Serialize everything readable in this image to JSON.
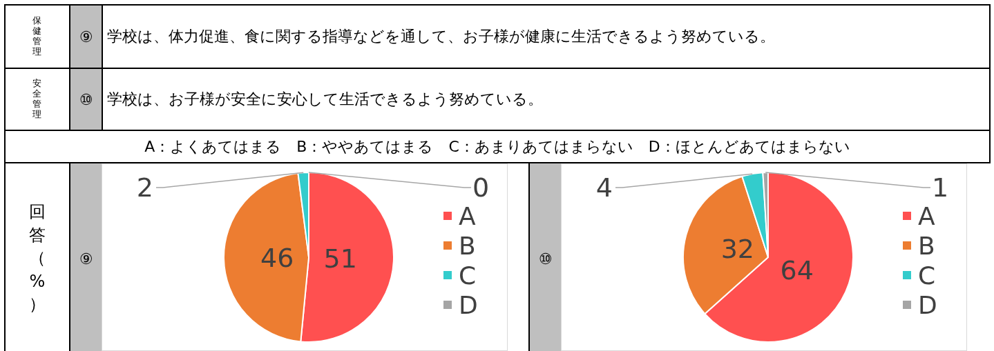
{
  "chart_data": [
    {
      "type": "other",
      "annotations": [
        "保健管理",
        "⑨",
        "学校は、体力促進、食に関する指導などを通して、お子様が健康に生活できるよう努めている。",
        "安全管理",
        "⑩",
        "学校は、お子様が安全に安心して生活できるよう努めている。",
        "A：よくあてはまる　B：ややあてはまる　C：あまりあてはまらない　D：ほとんどあてはまらない",
        "回答（%）"
      ]
    },
    {
      "type": "pie",
      "title": "⑨",
      "categories": [
        "A",
        "B",
        "C",
        "D"
      ],
      "values": [
        51,
        46,
        2,
        0
      ],
      "value_labels": [
        "51",
        "46",
        "2",
        "0"
      ],
      "colors": [
        "#ff5050",
        "#ed7d31",
        "#33cccc",
        "#a5a5a5"
      ],
      "legend": "right"
    },
    {
      "type": "pie",
      "title": "⑩",
      "categories": [
        "A",
        "B",
        "C",
        "D"
      ],
      "values": [
        64,
        32,
        4,
        1
      ],
      "colors": [
        "#ff5050",
        "#ed7d31",
        "#33cccc",
        "#a5a5a5"
      ],
      "data_labels": true,
      "legend": "right"
    }
  ]
}
